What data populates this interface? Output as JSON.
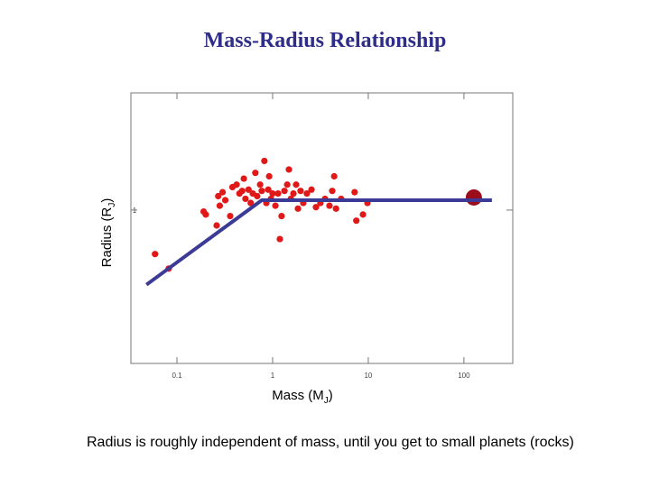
{
  "title": "Mass-Radius Relationship",
  "caption": "Radius is roughly independent of mass, until you get to small planets (rocks)",
  "chart_data": {
    "type": "scatter",
    "xlabel": [
      "Mass (M",
      "J",
      ")"
    ],
    "ylabel": [
      "Radius (R",
      "J",
      ")"
    ],
    "xlog": true,
    "ylog": true,
    "xlim": [
      0.033,
      324
    ],
    "ylim": [
      0.35,
      2.23
    ],
    "xticks": [
      0.1,
      1,
      10,
      100
    ],
    "yticks": [
      1
    ],
    "series": [
      {
        "marker": "dot",
        "color": "#e01818",
        "x": [
          0.059,
          0.082,
          0.19,
          0.2,
          0.26,
          0.27,
          0.28,
          0.3,
          0.32,
          0.36,
          0.38,
          0.42,
          0.45,
          0.48,
          0.5,
          0.52,
          0.56,
          0.59,
          0.62,
          0.66,
          0.69,
          0.74,
          0.77,
          0.82,
          0.86,
          0.9,
          0.92,
          0.96,
          1.0,
          1.07,
          1.14,
          1.19,
          1.24,
          1.33,
          1.42,
          1.48,
          1.55,
          1.65,
          1.76,
          1.84,
          1.96,
          2.09,
          2.28,
          2.55,
          2.84,
          3.16,
          3.53,
          3.93,
          4.2,
          4.4,
          4.6,
          5.2,
          7.2,
          7.5,
          8.8,
          9.8
        ],
        "values": [
          0.74,
          0.67,
          0.99,
          0.97,
          0.9,
          1.1,
          1.03,
          1.13,
          1.07,
          0.96,
          1.17,
          1.19,
          1.12,
          1.14,
          1.24,
          1.08,
          1.15,
          1.05,
          1.12,
          1.29,
          1.1,
          1.19,
          1.14,
          1.4,
          1.05,
          1.15,
          1.26,
          1.08,
          1.12,
          1.03,
          1.12,
          0.82,
          0.96,
          1.14,
          1.19,
          1.32,
          1.08,
          1.12,
          1.19,
          1.01,
          1.14,
          1.05,
          1.12,
          1.15,
          1.02,
          1.05,
          1.08,
          1.03,
          1.14,
          1.26,
          1.01,
          1.08,
          1.13,
          0.93,
          0.97,
          1.05
        ]
      },
      {
        "marker": "big-dot",
        "color": "#9b0d1a",
        "x": [
          127
        ],
        "values": [
          1.09
        ]
      },
      {
        "marker": "line",
        "color": "#3b3a96",
        "x": [
          0.048,
          0.77,
          196
        ],
        "values": [
          0.6,
          1.07,
          1.07
        ]
      }
    ]
  }
}
